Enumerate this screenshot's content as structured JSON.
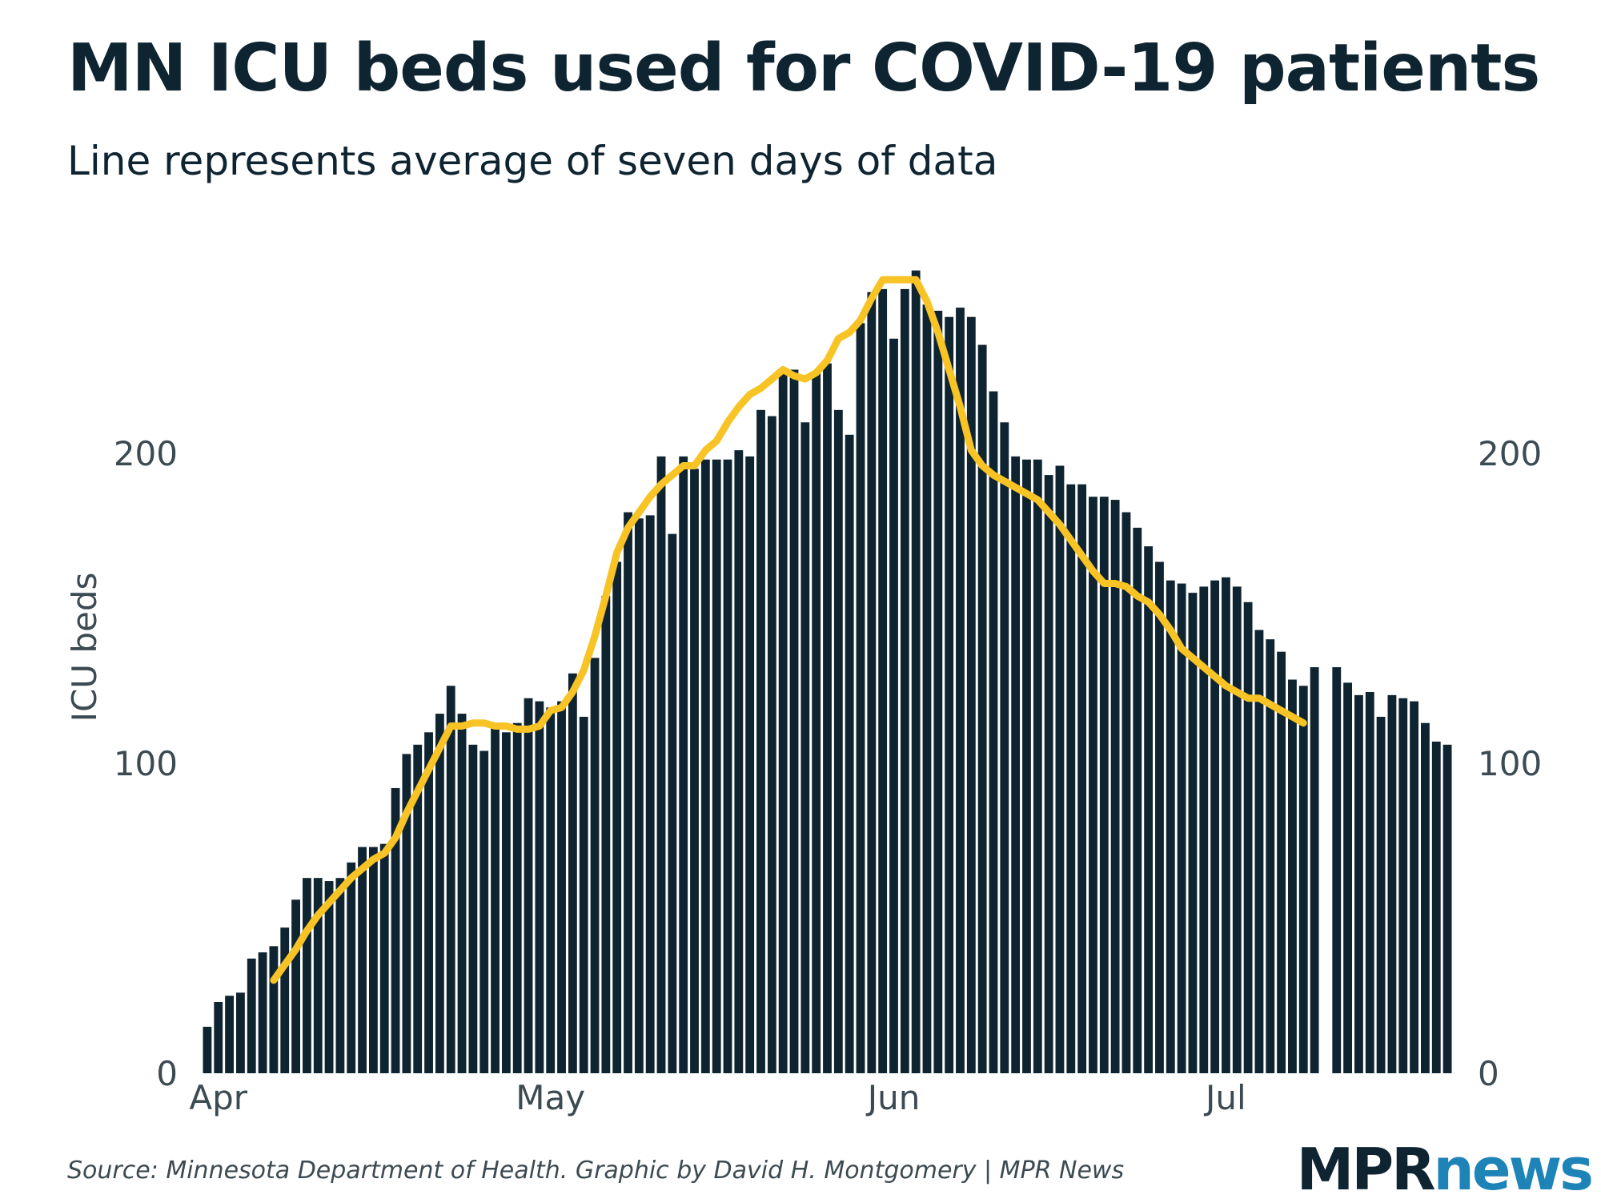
{
  "header": {
    "title": "MN ICU beds used for COVID-19 patients",
    "subtitle": "Line represents average of seven days of data"
  },
  "footer": {
    "source": "Source: Minnesota Department of Health. Graphic by David H. Montgomery | MPR News",
    "logo_part1": "MPR",
    "logo_part2": "news"
  },
  "colors": {
    "bar": "#0f2431",
    "line": "#f7c325",
    "text": "#0f2431",
    "tick": "#3c4a52",
    "logo_accent": "#1e84b8"
  },
  "chart_data": {
    "type": "bar",
    "ylabel": "ICU beds",
    "ylim": [
      0,
      270
    ],
    "yticks": [
      0,
      100,
      200
    ],
    "right_axis_ticks": [
      0,
      100,
      200
    ],
    "x_tick_labels": [
      "Apr",
      "May",
      "Jun",
      "Jul"
    ],
    "x_tick_dates": [
      "2020-04-01",
      "2020-05-01",
      "2020-06-01",
      "2020-07-01"
    ],
    "x_start": "2020-03-31",
    "series": [
      {
        "type": "bar",
        "values": [
          15,
          23,
          25,
          26,
          37,
          39,
          41,
          47,
          56,
          63,
          63,
          62,
          63,
          68,
          73,
          73,
          74,
          92,
          103,
          106,
          110,
          116,
          125,
          116,
          106,
          104,
          113,
          110,
          113,
          121,
          120,
          118,
          120,
          129,
          115,
          134,
          154,
          165,
          181,
          179,
          180,
          199,
          174,
          199,
          195,
          198,
          198,
          198,
          201,
          199,
          214,
          212,
          227,
          227,
          210,
          226,
          229,
          214,
          206,
          242,
          252,
          253,
          237,
          253,
          259,
          248,
          246,
          244,
          247,
          244,
          235,
          220,
          210,
          199,
          198,
          198,
          193,
          196,
          190,
          190,
          186,
          186,
          185,
          181,
          176,
          170,
          165,
          159,
          158,
          155,
          157,
          159,
          160,
          157,
          152,
          143,
          140,
          136,
          127,
          125,
          131,
          null,
          131,
          126,
          122,
          123,
          115,
          122,
          121,
          120,
          113,
          107,
          106
        ]
      },
      {
        "type": "line",
        "start_index": 6,
        "values": [
          30,
          35,
          40,
          46,
          51,
          55,
          59,
          63,
          66,
          69,
          71,
          76,
          84,
          91,
          98,
          105,
          112,
          112,
          113,
          113,
          112,
          112,
          111,
          111,
          112,
          117,
          118,
          123,
          130,
          141,
          154,
          168,
          176,
          181,
          186,
          190,
          193,
          196,
          196,
          201,
          204,
          210,
          215,
          219,
          221,
          224,
          227,
          225,
          224,
          226,
          230,
          237,
          239,
          243,
          250,
          256,
          256,
          256,
          256,
          249,
          239,
          227,
          215,
          201,
          196,
          193,
          191,
          189,
          187,
          185,
          181,
          177,
          172,
          167,
          162,
          158,
          158,
          157,
          154,
          152,
          148,
          143,
          137,
          134,
          131,
          128,
          125,
          123,
          121,
          121,
          119,
          117,
          115,
          113
        ]
      }
    ]
  }
}
